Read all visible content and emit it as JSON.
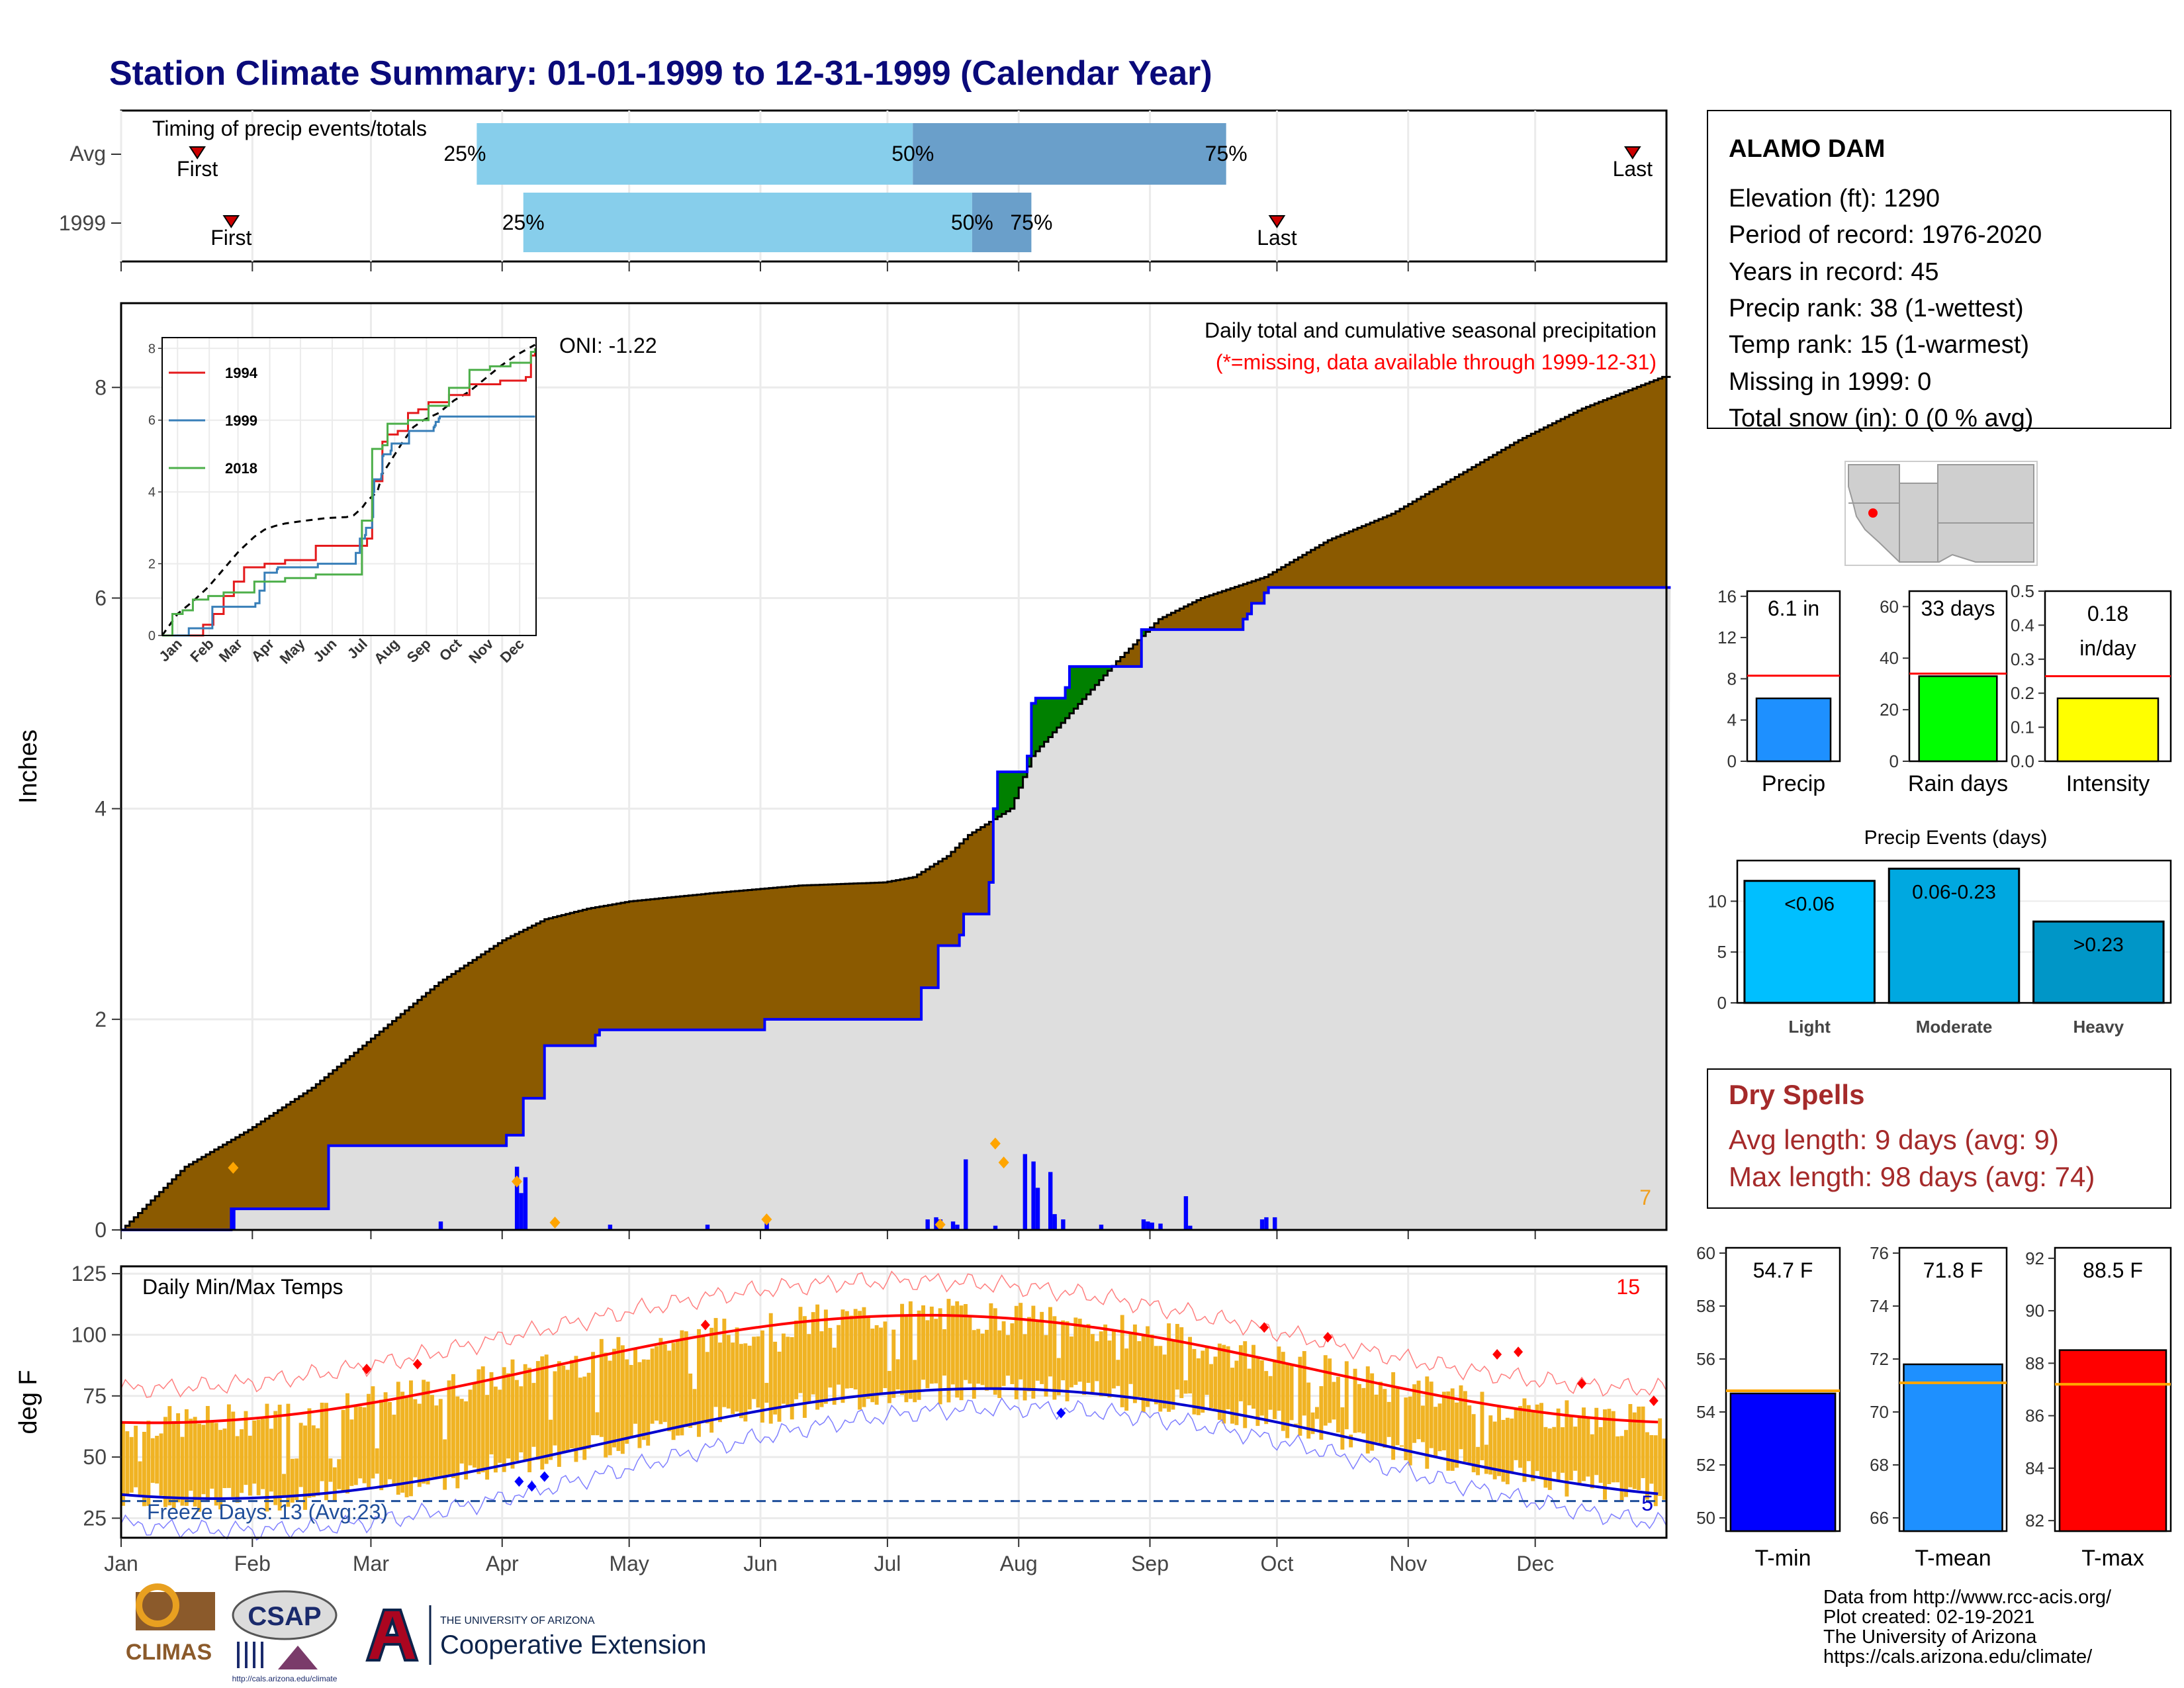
{
  "title": "Station Climate Summary: 01-01-1999 to 12-31-1999 (Calendar Year)",
  "colors": {
    "title": "#0a0a7a",
    "precip_avg": "#8b5a00",
    "precip_year": "#0000ff",
    "precip_above": "#008000",
    "fill_gray": "#dedede",
    "light_blue": "#87ceeb",
    "steel": "#6a9fca",
    "tmax": "#ff0000",
    "tmin": "#0000cd",
    "temp_bar": "#f0b323",
    "dry_spell": "#a52a2a",
    "event_marker": "#ffa500"
  },
  "months": [
    "Jan",
    "Feb",
    "Mar",
    "Apr",
    "May",
    "Jun",
    "Jul",
    "Aug",
    "Sep",
    "Oct",
    "Nov",
    "Dec"
  ],
  "timing": {
    "label": "Timing of precip events/totals",
    "rows": [
      {
        "name": "Avg",
        "first_day": 18,
        "p25_day": 84,
        "p50_day": 187,
        "p75_day": 261,
        "last_day": 357,
        "first_label": "First",
        "last_label": "Last",
        "p25_label": "25%",
        "p50_label": "50%",
        "p75_label": "75%"
      },
      {
        "name": "1999",
        "first_day": 26,
        "p25_day": 95,
        "p50_day": 201,
        "p75_day": 215,
        "last_day": 273,
        "first_label": "First",
        "last_label": "Last",
        "p25_label": "25%",
        "p50_label": "50%",
        "p75_label": "75%"
      }
    ]
  },
  "precip_panel": {
    "ylabel": "Inches",
    "oni": "ONI: -1.22",
    "legend_title": "Daily total and cumulative seasonal precipitation",
    "legend_sub": "(*=missing, data available through 1999-12-31)",
    "corner_count": "7",
    "ylim": [
      0,
      8.8
    ],
    "yticks": [
      0,
      2,
      4,
      6,
      8
    ],
    "avg_cumulative": {
      "day": [
        0,
        15,
        30,
        45,
        60,
        75,
        90,
        100,
        110,
        120,
        140,
        160,
        180,
        187,
        195,
        200,
        210,
        215,
        225,
        235,
        245,
        255,
        270,
        285,
        300,
        315,
        330,
        345,
        364
      ],
      "in": [
        0,
        0.6,
        0.95,
        1.35,
        1.85,
        2.35,
        2.75,
        2.95,
        3.05,
        3.12,
        3.2,
        3.27,
        3.3,
        3.35,
        3.55,
        3.75,
        4.0,
        4.5,
        4.95,
        5.4,
        5.8,
        6.0,
        6.2,
        6.55,
        6.8,
        7.15,
        7.5,
        7.8,
        8.1
      ]
    },
    "year_cumulative": {
      "day": [
        0,
        25,
        26,
        48,
        49,
        75,
        91,
        95,
        100,
        112,
        113,
        152,
        189,
        193,
        198,
        199,
        205,
        206,
        207,
        214,
        215,
        216,
        223,
        224,
        240,
        241,
        250,
        251,
        265,
        266,
        267,
        270,
        271,
        364
      ],
      "in": [
        0,
        0,
        0.2,
        0.2,
        0.8,
        0.8,
        0.9,
        1.25,
        1.75,
        1.85,
        1.9,
        2.0,
        2.3,
        2.7,
        2.8,
        3.0,
        3.3,
        4.0,
        4.35,
        4.5,
        5.0,
        5.05,
        5.15,
        5.35,
        5.35,
        5.7,
        5.7,
        5.7,
        5.8,
        5.85,
        5.95,
        6.05,
        6.1,
        6.1
      ]
    },
    "daily_bars": {
      "day": [
        26,
        75,
        93,
        94,
        95,
        115,
        138,
        152,
        190,
        192,
        193,
        196,
        197,
        199,
        206,
        213,
        215,
        216,
        219,
        220,
        220,
        222,
        231,
        241,
        242,
        243,
        245,
        251,
        252,
        269,
        270,
        272
      ],
      "in": [
        0.2,
        0.08,
        0.6,
        0.35,
        0.5,
        0.05,
        0.05,
        0.07,
        0.1,
        0.12,
        0.1,
        0.08,
        0.05,
        0.67,
        0.04,
        0.72,
        0.65,
        0.4,
        0.55,
        0.15,
        0.12,
        0.1,
        0.05,
        0.1,
        0.08,
        0.07,
        0.06,
        0.32,
        0.04,
        0.1,
        0.12,
        0.12
      ]
    },
    "event_markers": {
      "day": [
        26,
        93,
        102,
        152,
        193,
        206,
        208
      ],
      "in": [
        0.59,
        0.46,
        0.07,
        0.1,
        0.05,
        0.82,
        0.64
      ]
    }
  },
  "inset": {
    "series": [
      {
        "name": "1994",
        "color": "#e41a1c"
      },
      {
        "name": "1999",
        "color": "#377eb8"
      },
      {
        "name": "2018",
        "color": "#4daf4a"
      }
    ],
    "avg_color": "#000000",
    "xticks": [
      "Jan",
      "Feb",
      "Mar",
      "Apr",
      "May",
      "Jun",
      "Jul",
      "Aug",
      "Sep",
      "Oct",
      "Nov",
      "Dec"
    ],
    "yticks": [
      0,
      2,
      4,
      6,
      8
    ],
    "ylim": [
      0,
      8.3
    ]
  },
  "temp_panel": {
    "ylabel": "deg F",
    "title": "Daily Min/Max Temps",
    "corner_count": "15",
    "freeze_label": "Freeze Days: 13 (Avg:23)",
    "freeze_count": "5",
    "ylim": [
      17,
      128
    ],
    "yticks": [
      25,
      50,
      75,
      100,
      125
    ],
    "freeze_line": 32
  },
  "station": {
    "name": "ALAMO DAM",
    "lines": [
      "Elevation (ft): 1290",
      "Period of record: 1976-2020",
      "Years in record: 45",
      "Precip rank: 38 (1-wettest)",
      "Temp rank: 15 (1-warmest)",
      "Missing in 1999: 0",
      "Total snow (in): 0 (0 % avg)"
    ]
  },
  "mini_precip": [
    {
      "label": "Precip",
      "value_label": "6.1 in",
      "value": 6.1,
      "avg": 8.3,
      "yticks": [
        0,
        4,
        8,
        12,
        16
      ],
      "ymax": 16.5,
      "color": "#1e90ff"
    },
    {
      "label": "Rain days",
      "value_label": "33 days",
      "value": 33,
      "avg": 34,
      "yticks": [
        0,
        20,
        40,
        60
      ],
      "ymax": 66,
      "color": "#00ff00"
    },
    {
      "label": "Intensity",
      "value_label": "0.18 in/day",
      "value": 0.185,
      "avg": 0.25,
      "yticks": [
        0.0,
        0.1,
        0.2,
        0.3,
        0.4,
        0.5
      ],
      "ymax": 0.5,
      "color": "#ffff00"
    }
  ],
  "events": {
    "title": "Precip Events (days)",
    "categories": [
      "Light",
      "Moderate",
      "Heavy"
    ],
    "labels": [
      "<0.06",
      "0.06-0.23",
      ">0.23"
    ],
    "values": [
      12,
      13.2,
      8
    ],
    "colors": [
      "#00bfff",
      "#00a8e0",
      "#0096c7"
    ],
    "yticks": [
      0,
      5,
      10
    ],
    "ymax": 14
  },
  "dry_spells": {
    "title": "Dry Spells",
    "avg_length": "Avg length: 9 days (avg: 9)",
    "max_length": "Max length: 98 days (avg: 74)"
  },
  "mini_temp": [
    {
      "label": "T-min",
      "value_label": "54.7 F",
      "value": 54.7,
      "avg": 54.8,
      "yticks": [
        50,
        52,
        54,
        56,
        58,
        60
      ],
      "ymin": 49.5,
      "ymax": 60.2,
      "color": "#0000ff"
    },
    {
      "label": "T-mean",
      "value_label": "71.8 F",
      "value": 71.8,
      "avg": 71.1,
      "yticks": [
        66,
        68,
        70,
        72,
        74,
        76
      ],
      "ymin": 65.5,
      "ymax": 76.2,
      "color": "#1e90ff"
    },
    {
      "label": "T-max",
      "value_label": "88.5 F",
      "value": 88.5,
      "avg": 87.2,
      "yticks": [
        82,
        84,
        86,
        88,
        90,
        92
      ],
      "ymin": 81.6,
      "ymax": 92.4,
      "color": "#ff0000"
    }
  ],
  "footer": {
    "lines": [
      "Data from http://www.rcc-acis.org/",
      "Plot created: 02-19-2021",
      "The University of Arizona",
      "https://cals.arizona.edu/climate/"
    ],
    "climas": "CLIMAS",
    "csap": "CSAP",
    "csap_url": "http://cals.arizona.edu/climate",
    "ua_small": "THE UNIVERSITY OF ARIZONA",
    "ua_big": "Cooperative Extension"
  }
}
